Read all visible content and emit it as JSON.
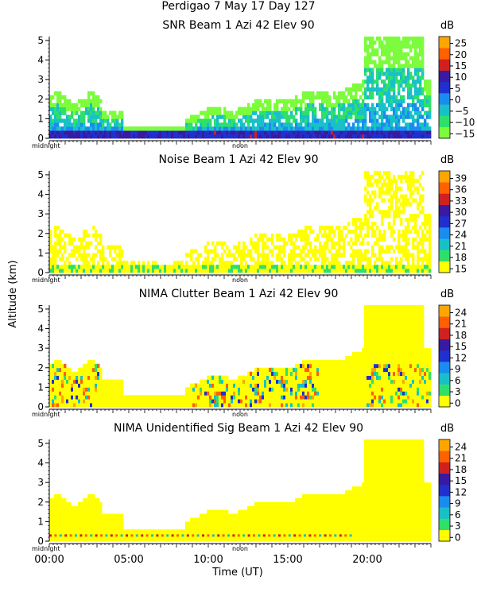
{
  "figure": {
    "title": "Perdigao    7 May 17 Day 127",
    "ylabel": "Altitude (km)",
    "xlabel": "Time (UT)",
    "x_ticks": [
      "00:00",
      "05:00",
      "10:00",
      "15:00",
      "20:00"
    ],
    "x_range_hours": [
      0,
      24
    ],
    "minor_midnight": "midnight",
    "minor_noon": "noon"
  },
  "chart_data": [
    {
      "type": "heatmap",
      "title": "SNR Beam 1 Azi   42 Elev 90",
      "unit": "dB",
      "ylim": [
        0,
        5.2
      ],
      "y_ticks": [
        "0",
        "1",
        "2",
        "3",
        "4",
        "5"
      ],
      "colorbar_ticks": [
        "25",
        "20",
        "15",
        "10",
        "5",
        "0",
        "−5",
        "−10",
        "−15"
      ],
      "colorbar_range": [
        -17,
        28
      ],
      "pattern": "snr"
    },
    {
      "type": "heatmap",
      "title": "Noise Beam 1 Azi   42 Elev 90",
      "unit": "dB",
      "ylim": [
        0,
        5.2
      ],
      "y_ticks": [
        "0",
        "1",
        "2",
        "3",
        "4",
        "5"
      ],
      "colorbar_ticks": [
        "39",
        "36",
        "33",
        "30",
        "27",
        "24",
        "21",
        "18",
        "15"
      ],
      "colorbar_range": [
        14,
        41
      ],
      "pattern": "noise"
    },
    {
      "type": "heatmap",
      "title": "NIMA Clutter Beam 1 Azi   42 Elev 90",
      "unit": "dB",
      "ylim": [
        0,
        5.2
      ],
      "y_ticks": [
        "0",
        "1",
        "2",
        "3",
        "4",
        "5"
      ],
      "colorbar_ticks": [
        "24",
        "21",
        "18",
        "15",
        "12",
        "9",
        "6",
        "3",
        "0"
      ],
      "colorbar_range": [
        -1,
        26
      ],
      "pattern": "clutter"
    },
    {
      "type": "heatmap",
      "title": "NIMA Unidentified Sig Beam 1 Azi   42 Elev 90",
      "unit": "dB",
      "ylim": [
        0,
        5.2
      ],
      "y_ticks": [
        "0",
        "1",
        "2",
        "3",
        "4",
        "5"
      ],
      "colorbar_ticks": [
        "24",
        "21",
        "18",
        "15",
        "12",
        "9",
        "6",
        "3",
        "0"
      ],
      "colorbar_range": [
        -1,
        26
      ],
      "pattern": "unid"
    }
  ],
  "colors": {
    "scale": [
      "#7cfc3c",
      "#2ee06a",
      "#18c0c8",
      "#1a8cf0",
      "#2030d0",
      "#3a1aa0",
      "#d02020",
      "#ff6000",
      "#ffa500"
    ],
    "yellow": "#ffff00",
    "axis": "#000000"
  }
}
